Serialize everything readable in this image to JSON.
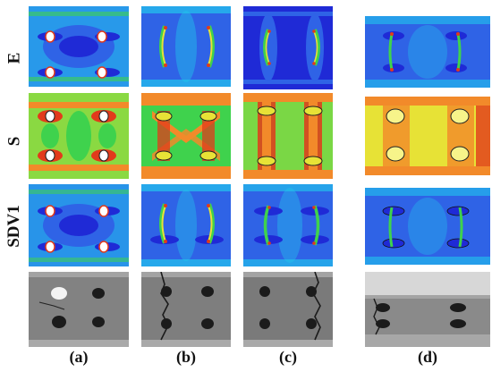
{
  "row_labels": [
    "E",
    "S",
    "SDV1"
  ],
  "column_labels": [
    "(a)",
    "(b)",
    "(c)",
    "(d)"
  ],
  "colors": {
    "deep_blue": "#1f2ad6",
    "blue": "#2f63e6",
    "cyan": "#22c6ec",
    "green": "#3fd24d",
    "yellow": "#e7e236",
    "orange": "#f28a2a",
    "red": "#e23a1b",
    "photo_light": "#8f8f8f",
    "photo_dark": "#3a3a3a"
  }
}
